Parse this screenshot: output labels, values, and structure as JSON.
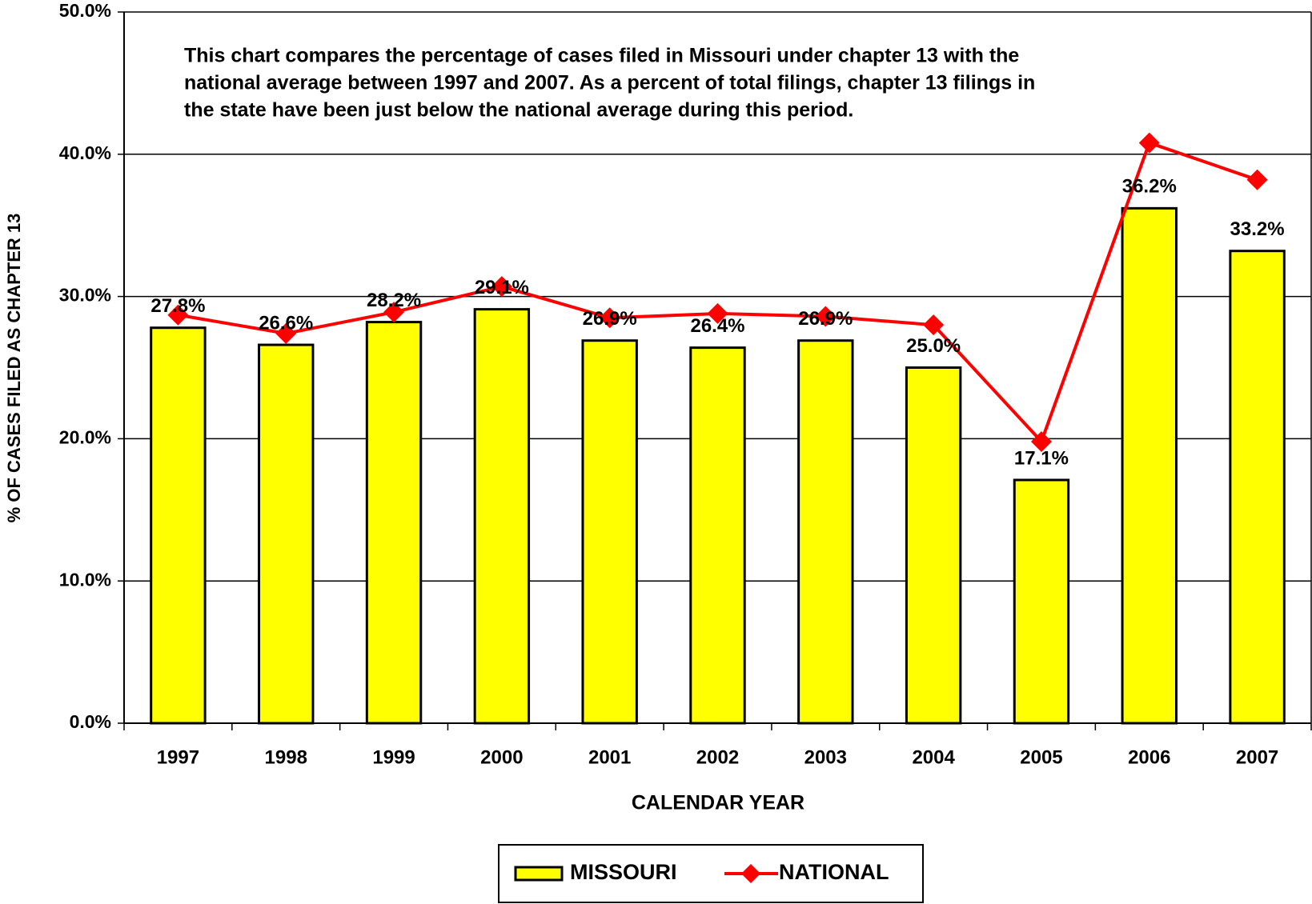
{
  "chart_data": {
    "type": "bar",
    "annotation": [
      "This chart compares the percentage of cases filed in Missouri under chapter 13 with the",
      "national average between 1997 and 2007.  As a percent of total filings, chapter 13 filings in",
      "the state have been just below the national average during this period."
    ],
    "x_label": "CALENDAR YEAR",
    "y_label": "% OF CASES FILED AS CHAPTER 13",
    "categories": [
      "1997",
      "1998",
      "1999",
      "2000",
      "2001",
      "2002",
      "2003",
      "2004",
      "2005",
      "2006",
      "2007"
    ],
    "series": [
      {
        "name": "MISSOURI",
        "type": "bar",
        "color": "#ffff00",
        "values": [
          27.8,
          26.6,
          28.2,
          29.1,
          26.9,
          26.4,
          26.9,
          25.0,
          17.1,
          36.2,
          33.2
        ],
        "value_labels": [
          "27.8%",
          "26.6%",
          "28.2%",
          "29.1%",
          "26.9%",
          "26.4%",
          "26.9%",
          "25.0%",
          "17.1%",
          "36.2%",
          "33.2%"
        ]
      },
      {
        "name": "NATIONAL",
        "type": "line",
        "color": "#ff0000",
        "values": [
          28.7,
          27.4,
          28.9,
          30.7,
          28.5,
          28.8,
          28.6,
          28.0,
          19.8,
          40.8,
          38.2
        ]
      }
    ],
    "ylim": [
      0,
      50
    ],
    "yticks": [
      {
        "value": 0,
        "label": "0.0%"
      },
      {
        "value": 10,
        "label": "10.0%"
      },
      {
        "value": 20,
        "label": "20.0%"
      },
      {
        "value": 30,
        "label": "30.0%"
      },
      {
        "value": 40,
        "label": "40.0%"
      },
      {
        "value": 50,
        "label": "50.0%"
      }
    ],
    "grid": true,
    "legend": "bottom"
  }
}
